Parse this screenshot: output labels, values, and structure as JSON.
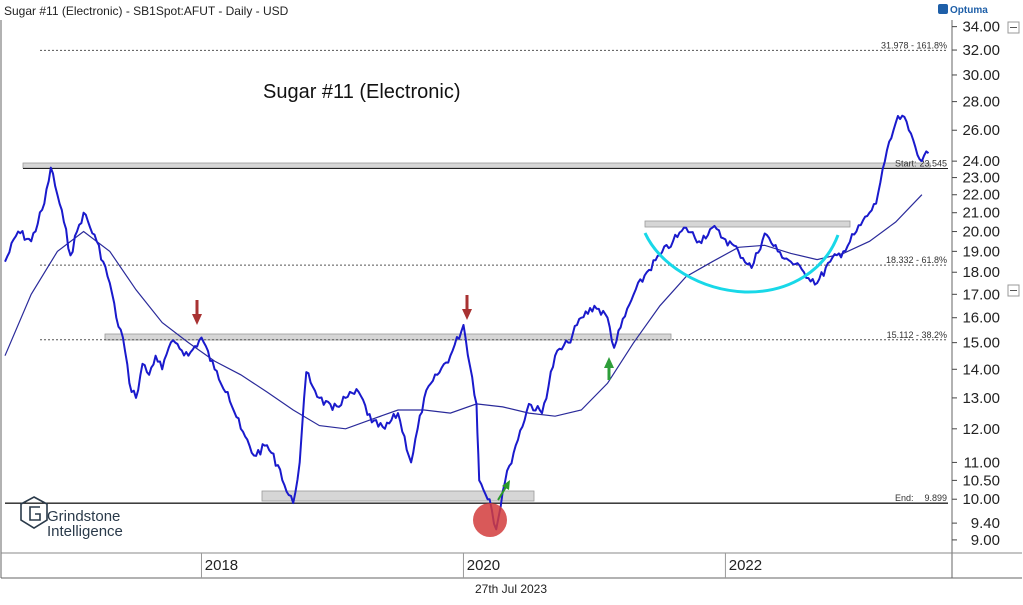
{
  "header": {
    "title": "Sugar #11 (Electronic) - SB1Spot:AFUT - Daily - USD",
    "provider": "Optuma"
  },
  "footer": {
    "date_label": "27th Jul 2023"
  },
  "branding": {
    "line1": "Grindstone",
    "line2": "Intelligence"
  },
  "colors": {
    "price": "#1a1acc",
    "moving_average": "#2a2a9a",
    "cup_arc": "#18d8e8",
    "arrow_down": "#a83232",
    "arrow_up_1": "#2e9e3a",
    "arrow_up_2": "#2a9a2a",
    "low_circle": "#d23c3c",
    "support_zone": "#d6d6d6",
    "grid_dotted": "#555555"
  },
  "chart_data": {
    "type": "line",
    "title": "Sugar #11 (Electronic)",
    "scale": "log",
    "ylim": [
      8.7,
      34.5
    ],
    "xlim": [
      2016.5,
      2023.6
    ],
    "y_ticks": [
      "9.00",
      "9.40",
      "10.00",
      "10.50",
      "11.00",
      "12.00",
      "13.00",
      "14.00",
      "15.00",
      "16.00",
      "17.00",
      "18.00",
      "19.00",
      "20.00",
      "21.00",
      "22.00",
      "23.00",
      "24.00",
      "26.00",
      "28.00",
      "30.00",
      "32.00",
      "34.00"
    ],
    "x_ticks": [
      "2018",
      "2020",
      "2022"
    ],
    "series": [
      {
        "type": "price",
        "x": [
          2016.5,
          2016.6,
          2016.7,
          2016.8,
          2016.85,
          2016.9,
          2016.95,
          2017.0,
          2017.05,
          2017.1,
          2017.2,
          2017.3,
          2017.35,
          2017.4,
          2017.45,
          2017.5,
          2017.55,
          2017.6,
          2017.65,
          2017.7,
          2017.75,
          2017.8,
          2017.9,
          2018.0,
          2018.1,
          2018.2,
          2018.3,
          2018.4,
          2018.5,
          2018.6,
          2018.65,
          2018.7,
          2018.75,
          2018.8,
          2018.9,
          2019.0,
          2019.1,
          2019.2,
          2019.3,
          2019.4,
          2019.5,
          2019.6,
          2019.7,
          2019.8,
          2019.9,
          2020.0,
          2020.1,
          2020.12,
          2020.2,
          2020.25,
          2020.3,
          2020.35,
          2020.4,
          2020.5,
          2020.6,
          2020.7,
          2020.8,
          2020.9,
          2021.0,
          2021.1,
          2021.15,
          2021.2,
          2021.3,
          2021.4,
          2021.5,
          2021.6,
          2021.7,
          2021.8,
          2021.9,
          2022.0,
          2022.1,
          2022.2,
          2022.3,
          2022.4,
          2022.5,
          2022.6,
          2022.7,
          2022.8,
          2022.9,
          2023.0,
          2023.1,
          2023.15,
          2023.2,
          2023.3,
          2023.35,
          2023.4,
          2023.5,
          2023.55
        ],
        "y": [
          18.5,
          20.0,
          19.5,
          21.5,
          23.6,
          22.0,
          20.5,
          18.8,
          20.0,
          21.0,
          19.5,
          17.5,
          16.0,
          15.2,
          13.5,
          13.0,
          14.2,
          13.8,
          14.5,
          14.0,
          14.8,
          15.0,
          14.5,
          15.2,
          14.0,
          13.2,
          12.0,
          11.2,
          11.5,
          10.8,
          10.2,
          9.9,
          11.0,
          13.9,
          13.0,
          12.6,
          13.0,
          13.2,
          12.2,
          12.0,
          12.5,
          11.0,
          13.0,
          13.8,
          14.5,
          15.7,
          12.8,
          10.5,
          10.0,
          9.25,
          10.2,
          10.9,
          11.5,
          12.8,
          12.5,
          14.5,
          15.0,
          16.0,
          16.5,
          16.0,
          14.8,
          15.6,
          17.0,
          18.0,
          18.8,
          19.5,
          20.2,
          19.5,
          20.2,
          19.6,
          19.0,
          18.2,
          19.9,
          19.0,
          18.5,
          18.0,
          17.5,
          18.5,
          19.0,
          20.0,
          21.0,
          21.5,
          23.5,
          26.5,
          27.0,
          26.0,
          24.0,
          24.5
        ]
      },
      {
        "type": "moving_average",
        "x": [
          2016.5,
          2016.7,
          2016.9,
          2017.1,
          2017.3,
          2017.5,
          2017.7,
          2017.9,
          2018.1,
          2018.3,
          2018.5,
          2018.7,
          2018.9,
          2019.1,
          2019.3,
          2019.5,
          2019.7,
          2019.9,
          2020.1,
          2020.3,
          2020.5,
          2020.7,
          2020.9,
          2021.1,
          2021.3,
          2021.5,
          2021.7,
          2021.9,
          2022.1,
          2022.3,
          2022.5,
          2022.7,
          2022.9,
          2023.1,
          2023.3,
          2023.5
        ],
        "y": [
          14.5,
          17.0,
          19.0,
          20.0,
          19.0,
          17.2,
          15.8,
          15.0,
          14.3,
          13.8,
          13.2,
          12.6,
          12.1,
          12.0,
          12.3,
          12.6,
          12.6,
          12.5,
          12.8,
          12.7,
          12.5,
          12.4,
          12.6,
          13.5,
          15.0,
          16.5,
          17.8,
          18.5,
          19.2,
          19.3,
          18.9,
          18.6,
          18.9,
          19.5,
          20.5,
          22.0
        ]
      }
    ],
    "annotations": [
      {
        "kind": "hline",
        "level": 31.978,
        "label": "31.978 - 161.8%"
      },
      {
        "kind": "hline",
        "level": 18.332,
        "label": "18.332 - 61.8%"
      },
      {
        "kind": "hline",
        "level": 15.112,
        "label": "15.112 - 38.2%"
      },
      {
        "kind": "hline",
        "level": 23.545,
        "label_left": "Start:",
        "label": "23.545"
      },
      {
        "kind": "hline",
        "level": 9.899,
        "label_left": "End:",
        "label": "9.899"
      }
    ]
  }
}
